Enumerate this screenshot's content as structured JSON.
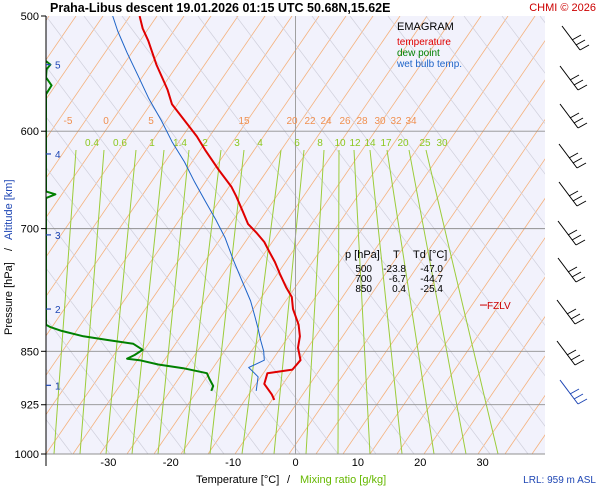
{
  "header": {
    "title": "Praha-Libus   descent   19.01.2026 01:15 UTC   50.68N,15.62E",
    "copyright": "CHMI © 2026"
  },
  "legend": {
    "title": "EMAGRAM",
    "items": [
      {
        "label": "temperature",
        "color": "#e00000"
      },
      {
        "label": "dew point",
        "color": "#008000"
      },
      {
        "label": "wet bulb temp.",
        "color": "#1e64c8"
      }
    ]
  },
  "table": {
    "headers": [
      "p [hPa]",
      "T",
      "Td [°C]"
    ],
    "rows": [
      [
        "500",
        "-23.8",
        "-47.0"
      ],
      [
        "700",
        "-6.7",
        "-44.7"
      ],
      [
        "850",
        "0.4",
        "-25.4"
      ]
    ]
  },
  "fzlv_label": "FZLV",
  "lrl_label": "LRL: 959 m ASL",
  "chart_data": {
    "type": "line",
    "xlabel": "Temperature [°C]",
    "xlabel_sep": "/",
    "xlabel2": "Mixing ratio [g/kg]",
    "ylabel": "Pressure [hPa]",
    "ylabel_sep": "/",
    "ylabel2": "Altitude [km]",
    "xlim": [
      -40,
      40
    ],
    "ylim": [
      1000,
      500
    ],
    "y_scale": "log",
    "x_ticks": [
      -30,
      -20,
      -10,
      0,
      10,
      20,
      30
    ],
    "y_ticks": [
      500,
      600,
      700,
      850,
      925,
      1000
    ],
    "altitude_ticks": [
      {
        "km": "5",
        "p": 540
      },
      {
        "km": "4",
        "p": 622
      },
      {
        "km": "3",
        "p": 707
      },
      {
        "km": "2",
        "p": 795
      },
      {
        "km": "1",
        "p": 897
      }
    ],
    "potential_temp_labels": [
      "-5",
      "0",
      "5",
      "15",
      "20",
      "22",
      "24",
      "26",
      "28",
      "30",
      "32",
      "34"
    ],
    "mixing_ratio_labels": [
      "0.4",
      "0.6",
      "1",
      "1.4",
      "2",
      "3",
      "4",
      "6",
      "8",
      "10",
      "12",
      "14",
      "17",
      "20",
      "25",
      "30"
    ],
    "freezing_level_p": 790,
    "series": [
      {
        "name": "temperature",
        "color": "#e00000",
        "points": [
          [
            -25,
            500
          ],
          [
            -24.5,
            510
          ],
          [
            -23.6,
            520
          ],
          [
            -22.3,
            540
          ],
          [
            -21.3,
            552
          ],
          [
            -20.5,
            562
          ],
          [
            -19.8,
            575
          ],
          [
            -17.5,
            592
          ],
          [
            -15.8,
            605
          ],
          [
            -14.5,
            618
          ],
          [
            -12.3,
            638
          ],
          [
            -10.3,
            655
          ],
          [
            -9.5,
            665
          ],
          [
            -8.4,
            682
          ],
          [
            -7.6,
            695
          ],
          [
            -6.2,
            705
          ],
          [
            -5.0,
            715
          ],
          [
            -4.2,
            726
          ],
          [
            -3.3,
            738
          ],
          [
            -2.5,
            752
          ],
          [
            -1.5,
            768
          ],
          [
            -0.6,
            780
          ],
          [
            -0.4,
            795
          ],
          [
            0.5,
            815
          ],
          [
            0.7,
            830
          ],
          [
            0.4,
            845
          ],
          [
            0.8,
            862
          ],
          [
            -0.5,
            875
          ],
          [
            -4.5,
            880
          ],
          [
            -5.0,
            895
          ],
          [
            -3.8,
            910
          ],
          [
            -3.4,
            918
          ]
        ]
      },
      {
        "name": "dew point",
        "color": "#008000",
        "points": [
          [
            -40,
            537
          ],
          [
            -39.3,
            540
          ],
          [
            -39.9,
            544
          ],
          [
            -40,
            551
          ],
          [
            -39.1,
            558
          ],
          [
            -40,
            566
          ],
          [
            -40,
            660
          ],
          [
            -38.5,
            663
          ],
          [
            -40,
            667
          ],
          [
            -40,
            815
          ],
          [
            -39.3,
            818
          ],
          [
            -37.5,
            823
          ],
          [
            -34,
            830
          ],
          [
            -30,
            835
          ],
          [
            -26,
            840
          ],
          [
            -24.5,
            848
          ],
          [
            -25.8,
            855
          ],
          [
            -27,
            860
          ],
          [
            -25,
            862
          ],
          [
            -22,
            868
          ],
          [
            -18,
            873
          ],
          [
            -14.2,
            880
          ],
          [
            -13.8,
            888
          ],
          [
            -13.2,
            898
          ],
          [
            -13.5,
            905
          ]
        ]
      },
      {
        "name": "wet bulb temp.",
        "color": "#1e64c8",
        "points": [
          [
            -29.3,
            500
          ],
          [
            -28.5,
            512
          ],
          [
            -27,
            530
          ],
          [
            -25.2,
            550
          ],
          [
            -23.5,
            570
          ],
          [
            -21.5,
            590
          ],
          [
            -19.8,
            610
          ],
          [
            -17.8,
            630
          ],
          [
            -16.2,
            650
          ],
          [
            -14.5,
            670
          ],
          [
            -12.8,
            690
          ],
          [
            -11.3,
            710
          ],
          [
            -10,
            735
          ],
          [
            -8.6,
            760
          ],
          [
            -7.2,
            785
          ],
          [
            -6.5,
            805
          ],
          [
            -6.0,
            820
          ],
          [
            -5.6,
            835
          ],
          [
            -5.1,
            850
          ],
          [
            -5.0,
            862
          ],
          [
            -7.5,
            872
          ],
          [
            -6.0,
            885
          ],
          [
            -6.3,
            905
          ]
        ]
      }
    ]
  }
}
